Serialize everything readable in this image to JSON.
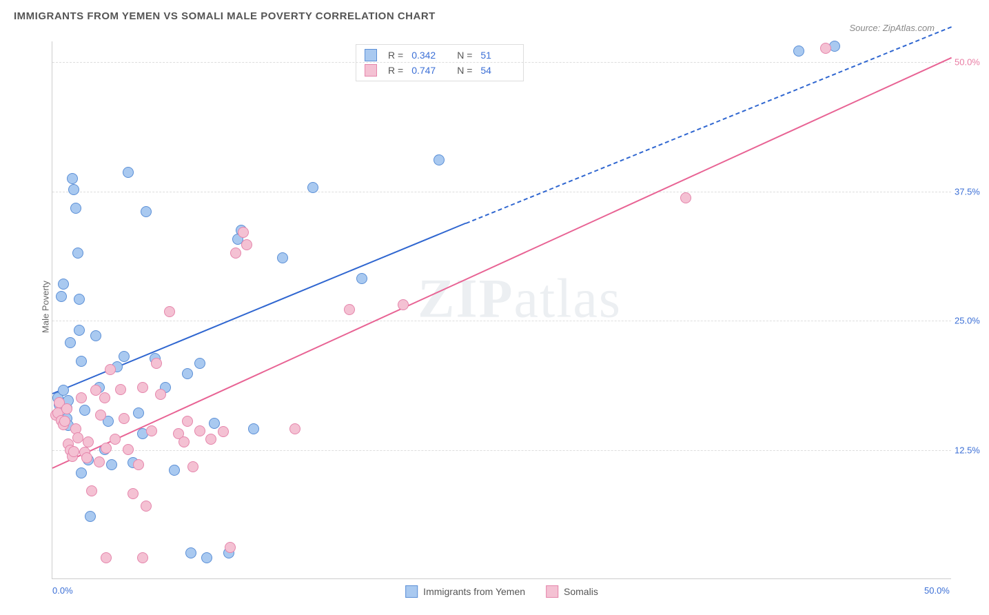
{
  "chart": {
    "type": "scatter",
    "title": "IMMIGRANTS FROM YEMEN VS SOMALI MALE POVERTY CORRELATION CHART",
    "source_label": "Source: ZipAtlas.com",
    "ylabel": "Male Poverty",
    "watermark_a": "ZIP",
    "watermark_b": "atlas",
    "background_color": "#ffffff",
    "grid_color": "#dddddd",
    "axis_color": "#cccccc",
    "xlim": [
      0,
      50
    ],
    "ylim": [
      0,
      52
    ],
    "xticks": [
      {
        "v": 0,
        "label": "0.0%",
        "color": "#3b6fd6"
      },
      {
        "v": 50,
        "label": "50.0%",
        "color": "#3b6fd6"
      }
    ],
    "yticks": [
      {
        "v": 12.5,
        "label": "12.5%",
        "color": "#3b6fd6"
      },
      {
        "v": 25.0,
        "label": "25.0%",
        "color": "#3b6fd6"
      },
      {
        "v": 37.5,
        "label": "37.5%",
        "color": "#3b6fd6"
      },
      {
        "v": 50.0,
        "label": "50.0%",
        "color": "#e97ca3"
      }
    ],
    "marker_radius": 8,
    "marker_border_width": 1.2,
    "marker_fill_opacity": 0.35,
    "series": [
      {
        "name": "Immigrants from Yemen",
        "color_fill": "#a9c9f0",
        "color_stroke": "#5b8fd6",
        "R": "0.342",
        "N": "51",
        "trend": {
          "x1": 0,
          "y1": 18.0,
          "x2": 23,
          "y2": 34.5,
          "x2_dash": 50,
          "y2_dash": 53.5,
          "color": "#2f66d0"
        },
        "points": [
          [
            0.3,
            17.5
          ],
          [
            0.4,
            16.8
          ],
          [
            0.5,
            27.3
          ],
          [
            0.6,
            28.5
          ],
          [
            0.6,
            18.2
          ],
          [
            0.8,
            16.5
          ],
          [
            0.8,
            15.5
          ],
          [
            0.9,
            17.2
          ],
          [
            0.9,
            14.8
          ],
          [
            1.0,
            22.8
          ],
          [
            1.1,
            38.7
          ],
          [
            1.2,
            37.6
          ],
          [
            1.3,
            35.8
          ],
          [
            1.4,
            31.5
          ],
          [
            1.5,
            27.0
          ],
          [
            1.5,
            24.0
          ],
          [
            1.6,
            21.0
          ],
          [
            1.6,
            10.2
          ],
          [
            1.8,
            16.3
          ],
          [
            2.0,
            11.5
          ],
          [
            2.1,
            6.0
          ],
          [
            2.4,
            23.5
          ],
          [
            2.6,
            18.5
          ],
          [
            2.9,
            12.5
          ],
          [
            3.1,
            15.2
          ],
          [
            3.3,
            11.0
          ],
          [
            3.6,
            20.5
          ],
          [
            4.0,
            21.5
          ],
          [
            4.2,
            39.3
          ],
          [
            4.5,
            11.2
          ],
          [
            4.8,
            16.0
          ],
          [
            5.0,
            14.0
          ],
          [
            5.2,
            35.5
          ],
          [
            5.7,
            21.3
          ],
          [
            6.3,
            18.5
          ],
          [
            6.8,
            10.5
          ],
          [
            7.5,
            19.8
          ],
          [
            7.7,
            2.5
          ],
          [
            8.2,
            20.8
          ],
          [
            8.6,
            2.0
          ],
          [
            9.0,
            15.0
          ],
          [
            9.8,
            2.5
          ],
          [
            10.3,
            32.8
          ],
          [
            10.5,
            33.7
          ],
          [
            11.2,
            14.5
          ],
          [
            12.8,
            31.0
          ],
          [
            14.5,
            37.8
          ],
          [
            17.2,
            29.0
          ],
          [
            21.5,
            40.5
          ],
          [
            43.5,
            51.5
          ],
          [
            41.5,
            51.0
          ]
        ]
      },
      {
        "name": "Somalis",
        "color_fill": "#f4c1d3",
        "color_stroke": "#e585ab",
        "R": "0.747",
        "N": "54",
        "trend": {
          "x1": 0,
          "y1": 10.8,
          "x2": 50,
          "y2": 50.5,
          "color": "#e86394"
        },
        "points": [
          [
            0.2,
            15.8
          ],
          [
            0.3,
            16.0
          ],
          [
            0.4,
            17.0
          ],
          [
            0.5,
            15.3
          ],
          [
            0.6,
            14.9
          ],
          [
            0.7,
            15.2
          ],
          [
            0.8,
            16.4
          ],
          [
            0.9,
            13.0
          ],
          [
            1.0,
            12.4
          ],
          [
            1.1,
            11.8
          ],
          [
            1.2,
            12.3
          ],
          [
            1.3,
            14.5
          ],
          [
            1.4,
            13.6
          ],
          [
            1.6,
            17.5
          ],
          [
            1.8,
            12.2
          ],
          [
            1.9,
            11.7
          ],
          [
            2.0,
            13.2
          ],
          [
            2.2,
            8.5
          ],
          [
            2.4,
            18.2
          ],
          [
            2.6,
            11.3
          ],
          [
            2.7,
            15.8
          ],
          [
            2.9,
            17.5
          ],
          [
            3.0,
            12.6
          ],
          [
            3.2,
            20.2
          ],
          [
            3.5,
            13.5
          ],
          [
            3.8,
            18.3
          ],
          [
            4.0,
            15.5
          ],
          [
            4.2,
            12.5
          ],
          [
            4.5,
            8.2
          ],
          [
            4.8,
            11.0
          ],
          [
            5.0,
            18.5
          ],
          [
            5.2,
            7.0
          ],
          [
            5.5,
            14.3
          ],
          [
            5.8,
            20.8
          ],
          [
            6.0,
            17.8
          ],
          [
            6.5,
            25.8
          ],
          [
            7.0,
            14.0
          ],
          [
            7.3,
            13.2
          ],
          [
            7.5,
            15.2
          ],
          [
            7.8,
            10.8
          ],
          [
            8.2,
            14.3
          ],
          [
            8.8,
            13.5
          ],
          [
            9.5,
            14.2
          ],
          [
            9.9,
            3.0
          ],
          [
            10.2,
            31.5
          ],
          [
            10.6,
            33.5
          ],
          [
            10.8,
            32.3
          ],
          [
            13.5,
            14.5
          ],
          [
            16.5,
            26.0
          ],
          [
            19.5,
            26.5
          ],
          [
            35.2,
            36.8
          ],
          [
            43.0,
            51.3
          ],
          [
            5.0,
            2.0
          ],
          [
            3.0,
            2.0
          ]
        ]
      }
    ],
    "legend_stat_color": "#3b6fd6",
    "legend_text_color": "#555555"
  }
}
